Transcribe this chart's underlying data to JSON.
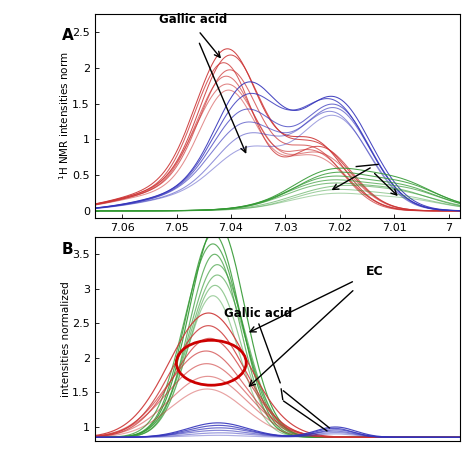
{
  "panel_A": {
    "ylabel": "1H NMR intensities norm",
    "gallic_acid_label": "Gallic acid",
    "xlim_left": 7.065,
    "xlim_right": 6.998,
    "ylim": [
      -0.1,
      2.75
    ],
    "yticks": [
      0,
      0.5,
      1.0,
      1.5,
      2.0,
      2.5
    ],
    "xticks": [
      7.06,
      7.05,
      7.04,
      7.03,
      7.02,
      7.01,
      7.0
    ]
  },
  "panel_B": {
    "ylabel": "intensities normalized",
    "gallic_acid_label": "Gallic acid",
    "ec_label": "EC",
    "xlim_left": 7.005,
    "xlim_right": 6.958,
    "ylim": [
      0.8,
      3.75
    ],
    "yticks": [
      1.0,
      1.5,
      2.0,
      2.5,
      3.0,
      3.5
    ]
  },
  "bg_color": "#ffffff",
  "red_color": "#cc3333",
  "blue_color": "#3333bb",
  "green_color": "#339933",
  "n_red": 7,
  "n_blue": 6,
  "n_green": 8
}
